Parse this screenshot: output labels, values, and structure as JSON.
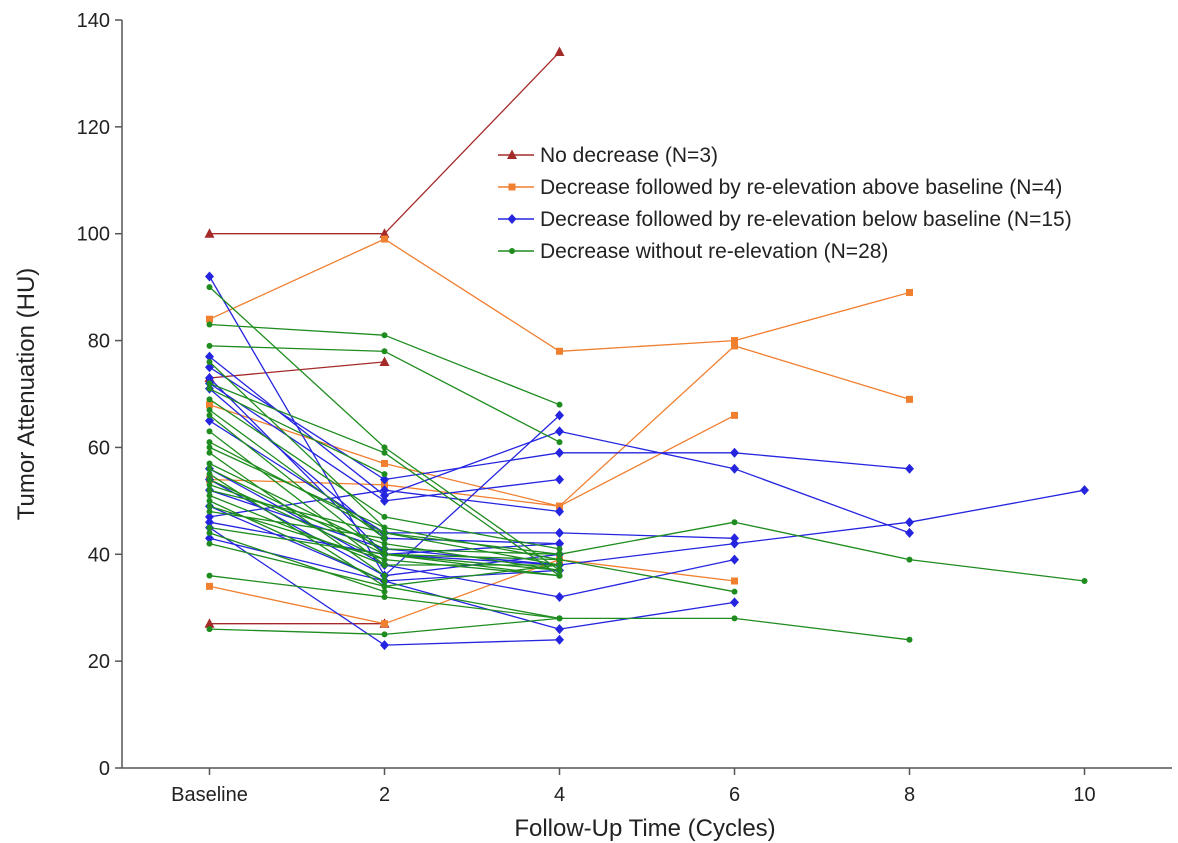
{
  "chart_data": {
    "type": "line",
    "title": "",
    "xlabel": "Follow-Up Time (Cycles)",
    "ylabel": "Tumor Attenuation (HU)",
    "x_ticks": [
      {
        "value": 0,
        "label": "Baseline"
      },
      {
        "value": 2,
        "label": "2"
      },
      {
        "value": 4,
        "label": "4"
      },
      {
        "value": 6,
        "label": "6"
      },
      {
        "value": 8,
        "label": "8"
      },
      {
        "value": 10,
        "label": "10"
      }
    ],
    "y_ticks": [
      0,
      20,
      40,
      60,
      80,
      100,
      120,
      140
    ],
    "xlim": [
      -1,
      11
    ],
    "ylim": [
      0,
      140
    ],
    "grid": false,
    "legend_position": "top-right",
    "groups": [
      {
        "name": "No decrease (N=3)",
        "color": "#A52A2A",
        "marker": "triangle",
        "series": [
          {
            "x": [
              0,
              2,
              4
            ],
            "y": [
              100,
              100,
              134
            ]
          },
          {
            "x": [
              0,
              2
            ],
            "y": [
              73,
              76
            ]
          },
          {
            "x": [
              0,
              2
            ],
            "y": [
              27,
              27
            ]
          }
        ]
      },
      {
        "name": "Decrease followed by re-elevation above baseline (N=4)",
        "color": "#F07F30",
        "marker": "square",
        "series": [
          {
            "x": [
              0,
              2,
              4,
              6,
              8
            ],
            "y": [
              84,
              99,
              78,
              80,
              89
            ]
          },
          {
            "x": [
              0,
              2,
              4,
              6,
              8
            ],
            "y": [
              68,
              57,
              49,
              79,
              69
            ]
          },
          {
            "x": [
              0,
              2,
              4,
              6
            ],
            "y": [
              54,
              53,
              49,
              66
            ]
          },
          {
            "x": [
              0,
              2,
              4,
              6
            ],
            "y": [
              34,
              27,
              39,
              35
            ]
          }
        ]
      },
      {
        "name": "Decrease followed by re-elevation below baseline (N=15)",
        "color": "#2525E0",
        "marker": "diamond",
        "series": [
          {
            "x": [
              0,
              2,
              4
            ],
            "y": [
              92,
              36,
              66
            ]
          },
          {
            "x": [
              0,
              2,
              4,
              6,
              8
            ],
            "y": [
              77,
              51,
              63,
              56,
              44
            ]
          },
          {
            "x": [
              0,
              2,
              4,
              6,
              8
            ],
            "y": [
              75,
              54,
              59,
              59,
              56
            ]
          },
          {
            "x": [
              0,
              2,
              4,
              6,
              8,
              10
            ],
            "y": [
              73,
              40,
              38,
              42,
              46,
              52
            ]
          },
          {
            "x": [
              0,
              2,
              4
            ],
            "y": [
              72,
              50,
              54
            ]
          },
          {
            "x": [
              0,
              2,
              4
            ],
            "y": [
              71,
              43,
              42
            ]
          },
          {
            "x": [
              0,
              2,
              4,
              6
            ],
            "y": [
              65,
              44,
              44,
              43
            ]
          },
          {
            "x": [
              0,
              2,
              4,
              6
            ],
            "y": [
              56,
              38,
              32,
              39
            ]
          },
          {
            "x": [
              0,
              2,
              4
            ],
            "y": [
              54,
              36,
              40
            ]
          },
          {
            "x": [
              0,
              2,
              4
            ],
            "y": [
              52,
              41,
              38
            ]
          },
          {
            "x": [
              0,
              2,
              4,
              6
            ],
            "y": [
              49,
              35,
              26,
              31
            ]
          },
          {
            "x": [
              0,
              2,
              4
            ],
            "y": [
              47,
              52,
              48
            ]
          },
          {
            "x": [
              0,
              2,
              4
            ],
            "y": [
              46,
              40,
              42
            ]
          },
          {
            "x": [
              0,
              2,
              4
            ],
            "y": [
              45,
              23,
              24
            ]
          },
          {
            "x": [
              0,
              2,
              4
            ],
            "y": [
              43,
              35,
              37
            ]
          }
        ]
      },
      {
        "name": "Decrease without re-elevation (N=28)",
        "color": "#1E8C1E",
        "marker": "circle",
        "series": [
          {
            "x": [
              0,
              2,
              4
            ],
            "y": [
              90,
              60,
              37
            ]
          },
          {
            "x": [
              0,
              2,
              4
            ],
            "y": [
              83,
              81,
              68
            ]
          },
          {
            "x": [
              0,
              2,
              4
            ],
            "y": [
              79,
              78,
              61
            ]
          },
          {
            "x": [
              0,
              2
            ],
            "y": [
              76,
              45
            ]
          },
          {
            "x": [
              0,
              2,
              4
            ],
            "y": [
              72,
              59,
              36
            ]
          },
          {
            "x": [
              0,
              2
            ],
            "y": [
              71,
              55
            ]
          },
          {
            "x": [
              0,
              2,
              4
            ],
            "y": [
              69,
              47,
              41
            ]
          },
          {
            "x": [
              0,
              2
            ],
            "y": [
              67,
              43
            ]
          },
          {
            "x": [
              0,
              2,
              4
            ],
            "y": [
              66,
              40,
              37
            ]
          },
          {
            "x": [
              0,
              2
            ],
            "y": [
              63,
              38
            ]
          },
          {
            "x": [
              0,
              2,
              4
            ],
            "y": [
              61,
              44,
              38
            ]
          },
          {
            "x": [
              0,
              2,
              4,
              6
            ],
            "y": [
              60,
              45,
              39,
              33
            ]
          },
          {
            "x": [
              0,
              2
            ],
            "y": [
              59,
              36
            ]
          },
          {
            "x": [
              0,
              2,
              4,
              6,
              8,
              10
            ],
            "y": [
              57,
              41,
              40,
              46,
              39,
              35
            ]
          },
          {
            "x": [
              0,
              2,
              4
            ],
            "y": [
              56,
              40,
              36
            ]
          },
          {
            "x": [
              0,
              2,
              4
            ],
            "y": [
              55,
              34,
              28
            ]
          },
          {
            "x": [
              0,
              2
            ],
            "y": [
              54,
              39
            ]
          },
          {
            "x": [
              0,
              2,
              4
            ],
            "y": [
              53,
              42,
              37
            ]
          },
          {
            "x": [
              0,
              2,
              4
            ],
            "y": [
              52,
              44,
              40
            ]
          },
          {
            "x": [
              0,
              2,
              4
            ],
            "y": [
              51,
              38,
              38
            ]
          },
          {
            "x": [
              0,
              2
            ],
            "y": [
              50,
              35
            ]
          },
          {
            "x": [
              0,
              2,
              4
            ],
            "y": [
              49,
              39,
              36
            ]
          },
          {
            "x": [
              0,
              2
            ],
            "y": [
              48,
              43
            ]
          },
          {
            "x": [
              0,
              2,
              4
            ],
            "y": [
              45,
              40,
              39
            ]
          },
          {
            "x": [
              0,
              2
            ],
            "y": [
              44,
              33
            ]
          },
          {
            "x": [
              0,
              2,
              4
            ],
            "y": [
              42,
              34,
              38
            ]
          },
          {
            "x": [
              0,
              2,
              4
            ],
            "y": [
              36,
              32,
              28
            ]
          },
          {
            "x": [
              0,
              2,
              4,
              6,
              8
            ],
            "y": [
              26,
              25,
              28,
              28,
              24
            ]
          }
        ]
      }
    ]
  }
}
